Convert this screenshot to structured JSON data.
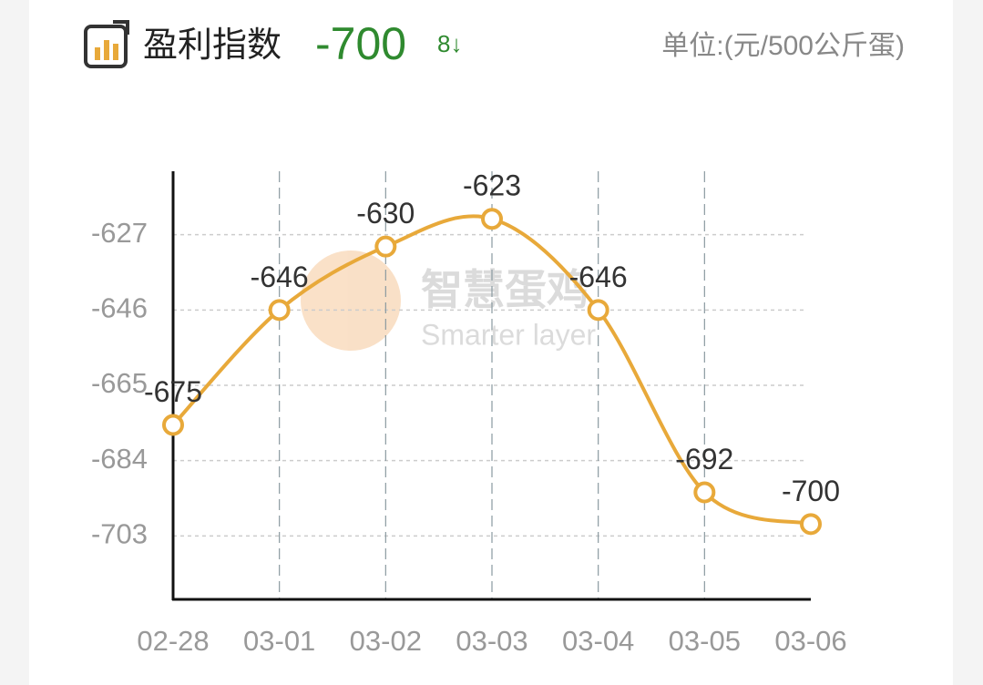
{
  "chart_data": {
    "type": "line",
    "title": "盈利指数",
    "current_value": -700,
    "change": "8↓",
    "unit": "单位:(元/500公斤蛋)",
    "watermark": "智慧蛋鸡",
    "watermark_subtitle": "Smarter layer",
    "categories": [
      "02-28",
      "03-01",
      "03-02",
      "03-03",
      "03-04",
      "03-05",
      "03-06"
    ],
    "series": [
      {
        "name": "盈利指数",
        "color": "#e8a93a",
        "values": [
          -675,
          -646,
          -630,
          -623,
          -646,
          -692,
          -700
        ]
      }
    ],
    "ylim": [
      -719,
      -611
    ],
    "yticks": [
      -627,
      -646,
      -665,
      -684,
      -703
    ],
    "grid": true
  }
}
